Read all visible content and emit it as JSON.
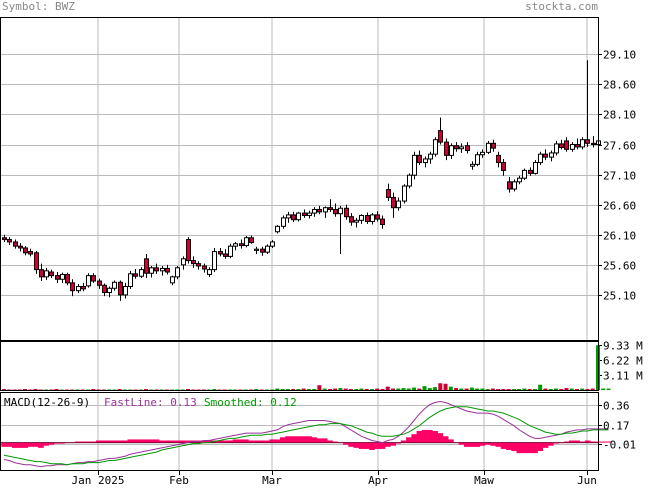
{
  "header": {
    "symbol_text": "Symbol: BWZ",
    "site_text": "stockta.com"
  },
  "colors": {
    "up_candle": "#ffffff",
    "down_candle": "#cc0033",
    "grid": "#bbbbbb",
    "volume_up": "#009900",
    "volume_down": "#cc0033",
    "macd_hist": "#ff0066",
    "fastline": "#993399",
    "smoothed": "#009900"
  },
  "chart_data": [
    {
      "type": "candlestick",
      "name": "price",
      "x_tick_labels": [
        "Jan 2025",
        "Feb",
        "Mar",
        "Apr",
        "Maw",
        "Jun"
      ],
      "y_tick_labels": [
        "29.10",
        "28.60",
        "28.10",
        "27.60",
        "27.10",
        "26.60",
        "26.10",
        "25.60",
        "25.10"
      ],
      "y_ticks": [
        29.1,
        28.6,
        28.1,
        27.6,
        27.1,
        26.6,
        26.1,
        25.6,
        25.1
      ],
      "ylim": [
        24.35,
        29.72
      ],
      "grid": true,
      "candles": [
        [
          26.05,
          26.1,
          25.98,
          26.02
        ],
        [
          26.02,
          26.06,
          25.93,
          25.98
        ],
        [
          25.98,
          26.02,
          25.87,
          25.91
        ],
        [
          25.91,
          25.96,
          25.82,
          25.88
        ],
        [
          25.88,
          25.91,
          25.76,
          25.8
        ],
        [
          25.82,
          25.87,
          25.74,
          25.78
        ],
        [
          25.8,
          25.83,
          25.45,
          25.52
        ],
        [
          25.52,
          25.62,
          25.33,
          25.4
        ],
        [
          25.4,
          25.55,
          25.35,
          25.5
        ],
        [
          25.48,
          25.52,
          25.38,
          25.42
        ],
        [
          25.42,
          25.48,
          25.3,
          25.36
        ],
        [
          25.36,
          25.47,
          25.3,
          25.44
        ],
        [
          25.44,
          25.47,
          25.26,
          25.3
        ],
        [
          25.3,
          25.36,
          25.08,
          25.17
        ],
        [
          25.17,
          25.28,
          25.13,
          25.24
        ],
        [
          25.24,
          25.3,
          25.16,
          25.2
        ],
        [
          25.25,
          25.46,
          25.22,
          25.42
        ],
        [
          25.42,
          25.46,
          25.3,
          25.33
        ],
        [
          25.33,
          25.37,
          25.2,
          25.26
        ],
        [
          25.26,
          25.29,
          25.08,
          25.14
        ],
        [
          25.14,
          25.24,
          25.06,
          25.21
        ],
        [
          25.21,
          25.34,
          25.17,
          25.31
        ],
        [
          25.31,
          25.34,
          25.0,
          25.1
        ],
        [
          25.1,
          25.3,
          25.04,
          25.24
        ],
        [
          25.24,
          25.5,
          25.2,
          25.45
        ],
        [
          25.45,
          25.53,
          25.37,
          25.41
        ],
        [
          25.41,
          25.56,
          25.38,
          25.52
        ],
        [
          25.7,
          25.78,
          25.38,
          25.46
        ],
        [
          25.46,
          25.58,
          25.39,
          25.55
        ],
        [
          25.55,
          25.62,
          25.45,
          25.5
        ],
        [
          25.5,
          25.58,
          25.42,
          25.54
        ],
        [
          25.54,
          25.6,
          25.44,
          25.48
        ],
        [
          25.3,
          25.42,
          25.26,
          25.4
        ],
        [
          25.4,
          25.58,
          25.36,
          25.55
        ],
        [
          25.6,
          25.74,
          25.52,
          25.7
        ],
        [
          26.02,
          26.06,
          25.62,
          25.67
        ],
        [
          25.67,
          25.74,
          25.55,
          25.62
        ],
        [
          25.62,
          25.66,
          25.52,
          25.58
        ],
        [
          25.58,
          25.62,
          25.47,
          25.53
        ],
        [
          25.44,
          25.56,
          25.4,
          25.52
        ],
        [
          25.52,
          25.88,
          25.48,
          25.82
        ],
        [
          25.82,
          25.88,
          25.74,
          25.78
        ],
        [
          25.78,
          25.86,
          25.7,
          25.74
        ],
        [
          25.74,
          25.95,
          25.71,
          25.91
        ],
        [
          25.91,
          25.98,
          25.84,
          25.95
        ],
        [
          25.95,
          26.02,
          25.87,
          25.92
        ],
        [
          25.92,
          26.08,
          25.89,
          26.05
        ],
        [
          26.05,
          26.09,
          25.95,
          25.97
        ],
        [
          25.84,
          25.9,
          25.78,
          25.86
        ],
        [
          25.86,
          25.9,
          25.75,
          25.81
        ],
        [
          25.81,
          25.94,
          25.78,
          25.91
        ],
        [
          25.91,
          26.01,
          25.88,
          25.98
        ],
        [
          26.15,
          26.26,
          26.12,
          26.24
        ],
        [
          26.24,
          26.42,
          26.2,
          26.38
        ],
        [
          26.38,
          26.48,
          26.3,
          26.43
        ],
        [
          26.43,
          26.48,
          26.31,
          26.35
        ],
        [
          26.35,
          26.48,
          26.32,
          26.46
        ],
        [
          26.46,
          26.52,
          26.38,
          26.42
        ],
        [
          26.42,
          26.5,
          26.37,
          26.46
        ],
        [
          26.46,
          26.56,
          26.4,
          26.52
        ],
        [
          26.52,
          26.58,
          26.44,
          26.48
        ],
        [
          26.48,
          26.57,
          26.38,
          26.55
        ],
        [
          26.55,
          26.69,
          26.48,
          26.52
        ],
        [
          26.52,
          26.62,
          26.4,
          26.45
        ],
        [
          26.45,
          26.58,
          25.78,
          26.54
        ],
        [
          26.54,
          26.6,
          26.35,
          26.4
        ],
        [
          26.4,
          26.46,
          26.25,
          26.31
        ],
        [
          26.31,
          26.38,
          26.22,
          26.34
        ],
        [
          26.34,
          26.44,
          26.28,
          26.42
        ],
        [
          26.42,
          26.47,
          26.28,
          26.32
        ],
        [
          26.32,
          26.46,
          26.27,
          26.43
        ],
        [
          26.43,
          26.49,
          26.32,
          26.36
        ],
        [
          26.36,
          26.42,
          26.2,
          26.27
        ],
        [
          26.85,
          26.95,
          26.66,
          26.72
        ],
        [
          26.72,
          26.8,
          26.38,
          26.55
        ],
        [
          26.55,
          26.72,
          26.5,
          26.66
        ],
        [
          26.66,
          26.94,
          26.62,
          26.91
        ],
        [
          26.91,
          27.12,
          26.87,
          27.09
        ],
        [
          27.09,
          27.48,
          27.02,
          27.42
        ],
        [
          27.42,
          27.5,
          27.26,
          27.3
        ],
        [
          27.3,
          27.4,
          27.22,
          27.36
        ],
        [
          27.36,
          27.48,
          27.28,
          27.44
        ],
        [
          27.44,
          27.72,
          27.4,
          27.68
        ],
        [
          27.83,
          28.05,
          27.6,
          27.64
        ],
        [
          27.64,
          27.7,
          27.34,
          27.42
        ],
        [
          27.42,
          27.62,
          27.36,
          27.58
        ],
        [
          27.58,
          27.64,
          27.48,
          27.53
        ],
        [
          27.53,
          27.62,
          27.46,
          27.56
        ],
        [
          27.58,
          27.64,
          27.45,
          27.5
        ],
        [
          27.24,
          27.32,
          27.18,
          27.27
        ],
        [
          27.27,
          27.48,
          27.24,
          27.43
        ],
        [
          27.43,
          27.52,
          27.38,
          27.47
        ],
        [
          27.47,
          27.66,
          27.44,
          27.62
        ],
        [
          27.62,
          27.68,
          27.48,
          27.54
        ],
        [
          27.42,
          27.48,
          27.22,
          27.3
        ],
        [
          27.3,
          27.36,
          27.08,
          27.17
        ],
        [
          26.98,
          27.06,
          26.8,
          26.86
        ],
        [
          26.86,
          27.02,
          26.82,
          26.98
        ],
        [
          26.98,
          27.08,
          26.94,
          27.04
        ],
        [
          27.04,
          27.2,
          27.01,
          27.17
        ],
        [
          27.17,
          27.22,
          27.08,
          27.12
        ],
        [
          27.12,
          27.34,
          27.1,
          27.3
        ],
        [
          27.3,
          27.48,
          27.26,
          27.44
        ],
        [
          27.44,
          27.52,
          27.34,
          27.39
        ],
        [
          27.39,
          27.5,
          27.32,
          27.46
        ],
        [
          27.46,
          27.66,
          27.42,
          27.61
        ],
        [
          27.61,
          27.68,
          27.52,
          27.55
        ],
        [
          27.66,
          27.72,
          27.48,
          27.52
        ],
        [
          27.52,
          27.64,
          27.48,
          27.6
        ],
        [
          27.6,
          27.7,
          27.52,
          27.56
        ],
        [
          27.56,
          27.72,
          27.52,
          27.68
        ],
        [
          27.68,
          29.0,
          27.56,
          27.62
        ],
        [
          27.62,
          27.74,
          27.55,
          27.6
        ],
        [
          27.6,
          27.72,
          27.56,
          27.66
        ]
      ]
    },
    {
      "type": "bar",
      "name": "volume",
      "y_tick_labels": [
        "9.33 M",
        "6.22 M",
        "3.11 M"
      ],
      "y_ticks": [
        9.33,
        6.22,
        3.11
      ],
      "ylim": [
        0,
        10.2
      ],
      "values": [
        0.2,
        0.1,
        0.1,
        0.1,
        0.2,
        0.1,
        0.2,
        0.1,
        0.1,
        0.1,
        0.2,
        0.1,
        0.1,
        0.1,
        0.1,
        0.1,
        0.1,
        0.2,
        0.1,
        0.1,
        0.1,
        0.1,
        0.2,
        0.1,
        0.1,
        0.1,
        0.1,
        0.2,
        0.1,
        0.1,
        0.1,
        0.1,
        0.1,
        0.1,
        0.1,
        0.2,
        0.1,
        0.1,
        0.1,
        0.1,
        0.2,
        0.1,
        0.1,
        0.1,
        0.1,
        0.1,
        0.1,
        0.1,
        0.2,
        0.1,
        0.1,
        0.1,
        0.3,
        0.2,
        0.2,
        0.2,
        0.2,
        0.3,
        0.2,
        0.2,
        1.0,
        0.3,
        0.2,
        0.3,
        0.4,
        0.3,
        0.2,
        0.2,
        0.3,
        0.2,
        0.2,
        0.3,
        0.2,
        0.7,
        0.3,
        0.3,
        0.4,
        0.3,
        0.5,
        0.3,
        0.8,
        0.4,
        0.6,
        1.4,
        1.3,
        0.7,
        0.4,
        0.3,
        0.3,
        0.5,
        0.3,
        0.3,
        0.2,
        0.3,
        0.2,
        0.2,
        0.2,
        0.2,
        0.2,
        0.3,
        0.2,
        0.2,
        1.1,
        0.3,
        0.2,
        0.3,
        0.2,
        0.4,
        0.3,
        0.2,
        0.3,
        0.2,
        0.3,
        9.3,
        0.3,
        0.3
      ]
    },
    {
      "type": "line",
      "name": "macd",
      "title": "MACD(12-26-9)",
      "legend": [
        {
          "label": "FastLine: 0.13",
          "color_key": "fastline"
        },
        {
          "label": "Smoothed: 0.12",
          "color_key": "smoothed"
        }
      ],
      "y_tick_labels": [
        "0.36",
        "0.17",
        "-0.01"
      ],
      "y_ticks": [
        0.36,
        0.17,
        -0.01
      ],
      "ylim": [
        -0.26,
        0.48
      ],
      "fastline": [
        -0.16,
        -0.17,
        -0.19,
        -0.2,
        -0.21,
        -0.21,
        -0.22,
        -0.23,
        -0.22,
        -0.22,
        -0.21,
        -0.21,
        -0.21,
        -0.2,
        -0.19,
        -0.19,
        -0.18,
        -0.18,
        -0.17,
        -0.16,
        -0.15,
        -0.15,
        -0.14,
        -0.13,
        -0.11,
        -0.1,
        -0.09,
        -0.08,
        -0.07,
        -0.06,
        -0.05,
        -0.04,
        -0.03,
        -0.02,
        -0.01,
        0.0,
        0.01,
        0.01,
        0.02,
        0.02,
        0.03,
        0.04,
        0.05,
        0.06,
        0.07,
        0.08,
        0.09,
        0.09,
        0.09,
        0.09,
        0.1,
        0.11,
        0.12,
        0.15,
        0.17,
        0.18,
        0.19,
        0.2,
        0.21,
        0.21,
        0.21,
        0.21,
        0.2,
        0.19,
        0.18,
        0.15,
        0.12,
        0.09,
        0.06,
        0.04,
        0.02,
        0.01,
        0.0,
        0.02,
        0.03,
        0.06,
        0.1,
        0.15,
        0.21,
        0.27,
        0.32,
        0.36,
        0.38,
        0.39,
        0.38,
        0.36,
        0.34,
        0.32,
        0.3,
        0.29,
        0.28,
        0.28,
        0.28,
        0.27,
        0.25,
        0.22,
        0.19,
        0.16,
        0.12,
        0.09,
        0.06,
        0.04,
        0.04,
        0.05,
        0.06,
        0.07,
        0.08,
        0.1,
        0.11,
        0.12,
        0.12,
        0.13,
        0.13,
        0.13,
        0.13,
        0.13
      ],
      "smoothed": [
        -0.12,
        -0.13,
        -0.14,
        -0.15,
        -0.16,
        -0.17,
        -0.18,
        -0.18,
        -0.19,
        -0.2,
        -0.2,
        -0.2,
        -0.21,
        -0.2,
        -0.2,
        -0.2,
        -0.19,
        -0.19,
        -0.19,
        -0.18,
        -0.17,
        -0.17,
        -0.16,
        -0.15,
        -0.14,
        -0.13,
        -0.12,
        -0.11,
        -0.1,
        -0.09,
        -0.07,
        -0.06,
        -0.05,
        -0.04,
        -0.03,
        -0.02,
        -0.01,
        -0.01,
        0.0,
        0.0,
        0.01,
        0.02,
        0.03,
        0.04,
        0.04,
        0.05,
        0.06,
        0.07,
        0.07,
        0.07,
        0.08,
        0.08,
        0.09,
        0.1,
        0.11,
        0.12,
        0.13,
        0.14,
        0.15,
        0.16,
        0.17,
        0.17,
        0.18,
        0.18,
        0.18,
        0.17,
        0.16,
        0.14,
        0.12,
        0.1,
        0.09,
        0.07,
        0.06,
        0.06,
        0.06,
        0.07,
        0.08,
        0.1,
        0.13,
        0.16,
        0.2,
        0.24,
        0.27,
        0.3,
        0.32,
        0.33,
        0.34,
        0.34,
        0.34,
        0.33,
        0.32,
        0.31,
        0.3,
        0.3,
        0.29,
        0.28,
        0.26,
        0.24,
        0.22,
        0.19,
        0.16,
        0.14,
        0.12,
        0.1,
        0.09,
        0.08,
        0.08,
        0.09,
        0.09,
        0.1,
        0.11,
        0.11,
        0.12,
        0.12,
        0.12,
        0.12
      ],
      "histogram": [
        -0.04,
        -0.04,
        -0.05,
        -0.05,
        -0.05,
        -0.04,
        -0.04,
        -0.05,
        -0.03,
        -0.02,
        -0.01,
        -0.01,
        0.0,
        0.0,
        0.01,
        0.01,
        0.01,
        0.01,
        0.02,
        0.02,
        0.02,
        0.02,
        0.02,
        0.02,
        0.03,
        0.03,
        0.03,
        0.03,
        0.03,
        0.03,
        0.02,
        0.02,
        0.02,
        0.02,
        0.02,
        0.02,
        0.02,
        0.02,
        0.02,
        0.02,
        0.02,
        0.02,
        0.02,
        0.02,
        0.03,
        0.03,
        0.03,
        0.02,
        0.02,
        0.02,
        0.02,
        0.03,
        0.03,
        0.05,
        0.06,
        0.06,
        0.06,
        0.06,
        0.06,
        0.05,
        0.04,
        0.04,
        0.02,
        0.01,
        0.0,
        -0.02,
        -0.04,
        -0.05,
        -0.06,
        -0.06,
        -0.07,
        -0.06,
        -0.06,
        -0.04,
        -0.03,
        -0.01,
        0.02,
        0.05,
        0.08,
        0.11,
        0.12,
        0.12,
        0.11,
        0.09,
        0.06,
        0.03,
        0.0,
        -0.02,
        -0.04,
        -0.04,
        -0.04,
        -0.03,
        -0.02,
        -0.03,
        -0.04,
        -0.06,
        -0.07,
        -0.08,
        -0.1,
        -0.1,
        -0.1,
        -0.1,
        -0.08,
        -0.05,
        -0.03,
        -0.01,
        0.0,
        0.01,
        0.02,
        0.02,
        0.01,
        0.02,
        0.01,
        0.01,
        0.01,
        0.01
      ]
    }
  ]
}
